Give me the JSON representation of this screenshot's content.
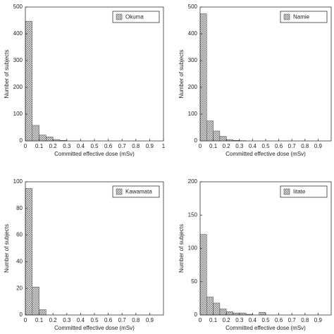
{
  "chart_data": [
    {
      "type": "histogram",
      "xlabel": "Committed effective dose (mSv)",
      "ylabel": "Number of subjects",
      "bins": [
        0,
        0.05,
        0.1,
        0.15,
        0.2,
        0.25,
        0.3
      ],
      "series": [
        {
          "name": "Okuma",
          "color": "#777777",
          "values": [
            447,
            58,
            22,
            15,
            5,
            2
          ]
        }
      ],
      "xlim": [
        0,
        1
      ],
      "xticks": [
        0,
        0.1,
        0.2,
        0.3,
        0.4,
        0.5,
        0.6,
        0.7,
        0.8,
        0.9,
        1
      ],
      "ylim": [
        0,
        500
      ],
      "yticks": [
        0,
        100,
        200,
        300,
        400,
        500
      ],
      "legend": "upper right"
    },
    {
      "type": "histogram",
      "xlabel": "Committed effective dose (mSv)",
      "ylabel": "Number of subjects",
      "bins": [
        0,
        0.05,
        0.1,
        0.15,
        0.2,
        0.25,
        0.3,
        0.35
      ],
      "series": [
        {
          "name": "Namie",
          "color": "#777777",
          "values": [
            475,
            75,
            37,
            17,
            5,
            2,
            1
          ]
        }
      ],
      "xlim": [
        0,
        1
      ],
      "xticks": [
        0,
        0.1,
        0.2,
        0.3,
        0.4,
        0.5,
        0.6,
        0.7,
        0.8,
        0.9
      ],
      "ylim": [
        0,
        500
      ],
      "yticks": [
        0,
        100,
        200,
        300,
        400,
        500
      ],
      "legend": "upper right"
    },
    {
      "type": "histogram",
      "xlabel": "Committed effective dose (mSv)",
      "ylabel": "Number of subjects",
      "bins": [
        0,
        0.05,
        0.1,
        0.15
      ],
      "series": [
        {
          "name": "Kawamata",
          "color": "#777777",
          "values": [
            95,
            21,
            4
          ]
        }
      ],
      "xlim": [
        0,
        1
      ],
      "xticks": [
        0,
        0.1,
        0.2,
        0.3,
        0.4,
        0.5,
        0.6,
        0.7,
        0.8,
        0.9
      ],
      "ylim": [
        0,
        100
      ],
      "yticks": [
        0,
        20,
        40,
        60,
        80,
        100
      ],
      "legend": "upper right"
    },
    {
      "type": "histogram",
      "xlabel": "Committed effective dose (mSv)",
      "ylabel": "Number of subjects",
      "bins": [
        0,
        0.05,
        0.1,
        0.15,
        0.2,
        0.25,
        0.3,
        0.35,
        0.4,
        0.45,
        0.5
      ],
      "series": [
        {
          "name": "Iitate",
          "color": "#777777",
          "values": [
            121,
            27,
            18,
            9,
            5,
            3,
            3,
            1,
            0,
            4
          ]
        }
      ],
      "xlim": [
        0,
        1
      ],
      "xticks": [
        0,
        0.1,
        0.2,
        0.3,
        0.4,
        0.5,
        0.6,
        0.7,
        0.8,
        0.9
      ],
      "ylim": [
        0,
        200
      ],
      "yticks": [
        0,
        50,
        100,
        150,
        200
      ],
      "legend": "upper right"
    }
  ]
}
